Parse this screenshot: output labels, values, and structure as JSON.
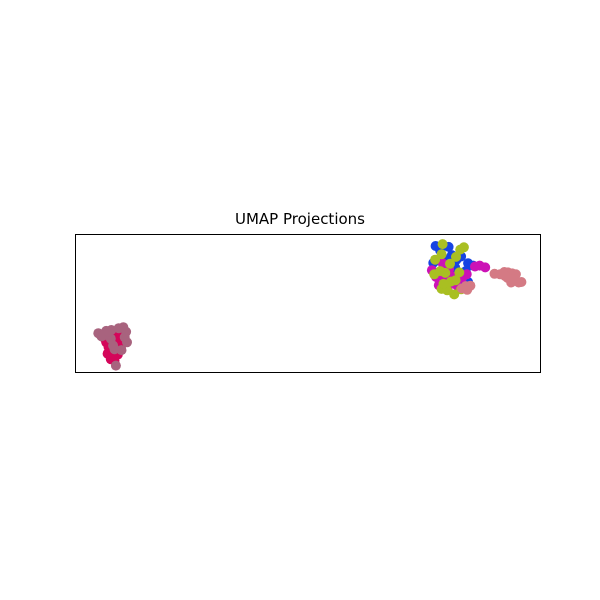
{
  "chart_data": {
    "type": "scatter",
    "title": "UMAP Projections",
    "xlabel": "",
    "ylabel": "",
    "xlim": [
      0,
      100
    ],
    "ylim": [
      0,
      30
    ],
    "grid": false,
    "ticks": false,
    "series": [
      {
        "color": "#d4065a",
        "points": [
          [
            6.5,
            6.5
          ],
          [
            7.0,
            5.5
          ],
          [
            7.5,
            7.0
          ],
          [
            8.0,
            8.5
          ],
          [
            6.8,
            4.0
          ],
          [
            7.5,
            2.8
          ],
          [
            8.2,
            4.5
          ],
          [
            9.0,
            3.8
          ],
          [
            9.5,
            5.2
          ],
          [
            10.0,
            6.2
          ],
          [
            8.8,
            7.5
          ],
          [
            7.2,
            6.0
          ],
          [
            6.2,
            7.3
          ],
          [
            7.8,
            3.5
          ],
          [
            9.3,
            8.7
          ],
          [
            10.4,
            7.0
          ],
          [
            9.7,
            6.7
          ],
          [
            8.3,
            2.5
          ]
        ]
      },
      {
        "color": "#a8637e",
        "points": [
          [
            4.8,
            8.5
          ],
          [
            5.5,
            7.8
          ],
          [
            6.5,
            9.0
          ],
          [
            7.6,
            9.2
          ],
          [
            9.2,
            9.6
          ],
          [
            10.2,
            9.8
          ],
          [
            10.8,
            8.8
          ],
          [
            11.0,
            6.5
          ],
          [
            9.8,
            4.8
          ],
          [
            8.3,
            5.0
          ],
          [
            7.5,
            7.3
          ],
          [
            8.6,
            1.4
          ],
          [
            8.0,
            5.8
          ],
          [
            5.9,
            8.0
          ],
          [
            7.0,
            8.8
          ],
          [
            10.5,
            7.6
          ]
        ]
      },
      {
        "color": "#1643e2",
        "points": [
          [
            77.5,
            27.6
          ],
          [
            78.5,
            26.6
          ],
          [
            80.3,
            27.4
          ],
          [
            81.0,
            25.6
          ],
          [
            82.0,
            24.6
          ],
          [
            83.0,
            25.3
          ],
          [
            84.5,
            23.8
          ],
          [
            85.6,
            23.3
          ],
          [
            84.0,
            22.1
          ],
          [
            82.6,
            19.4
          ],
          [
            84.5,
            19.7
          ],
          [
            77.0,
            23.9
          ],
          [
            79.4,
            24.8
          ],
          [
            78.0,
            21.2
          ],
          [
            79.8,
            22.6
          ],
          [
            80.8,
            21.1
          ],
          [
            81.7,
            22.9
          ]
        ]
      },
      {
        "color": "#cc12b6",
        "points": [
          [
            76.7,
            22.3
          ],
          [
            77.6,
            20.8
          ],
          [
            78.8,
            21.9
          ],
          [
            79.5,
            20.3
          ],
          [
            80.4,
            22.5
          ],
          [
            81.2,
            20.9
          ],
          [
            82.1,
            19.0
          ],
          [
            83.2,
            20.6
          ],
          [
            78.2,
            19.0
          ],
          [
            80.1,
            18.4
          ],
          [
            86.0,
            23.1
          ],
          [
            87.0,
            23.3
          ],
          [
            88.2,
            22.9
          ],
          [
            84.2,
            21.4
          ],
          [
            79.0,
            23.8
          ]
        ]
      },
      {
        "color": "#a9bf22",
        "points": [
          [
            79.0,
            28.0
          ],
          [
            83.6,
            27.3
          ],
          [
            82.8,
            26.8
          ],
          [
            77.4,
            24.6
          ],
          [
            78.8,
            25.8
          ],
          [
            80.6,
            23.7
          ],
          [
            81.9,
            25.2
          ],
          [
            77.2,
            21.4
          ],
          [
            78.5,
            22.1
          ],
          [
            79.6,
            21.7
          ],
          [
            82.6,
            21.8
          ],
          [
            80.8,
            19.8
          ],
          [
            78.8,
            18.2
          ],
          [
            80.0,
            17.9
          ],
          [
            81.5,
            17.0
          ],
          [
            83.0,
            18.1
          ],
          [
            79.2,
            19.3
          ],
          [
            81.8,
            20.1
          ]
        ]
      },
      {
        "color": "#d47a84",
        "points": [
          [
            90.2,
            21.5
          ],
          [
            91.4,
            21.4
          ],
          [
            92.3,
            21.9
          ],
          [
            93.1,
            21.8
          ],
          [
            94.0,
            21.6
          ],
          [
            94.8,
            21.4
          ],
          [
            93.0,
            20.6
          ],
          [
            92.5,
            21.0
          ],
          [
            94.3,
            20.3
          ],
          [
            95.4,
            19.6
          ],
          [
            93.8,
            19.6
          ],
          [
            96.0,
            19.7
          ],
          [
            84.0,
            18.8
          ],
          [
            85.0,
            18.9
          ],
          [
            83.2,
            18.3
          ],
          [
            84.3,
            18.0
          ]
        ]
      }
    ]
  }
}
